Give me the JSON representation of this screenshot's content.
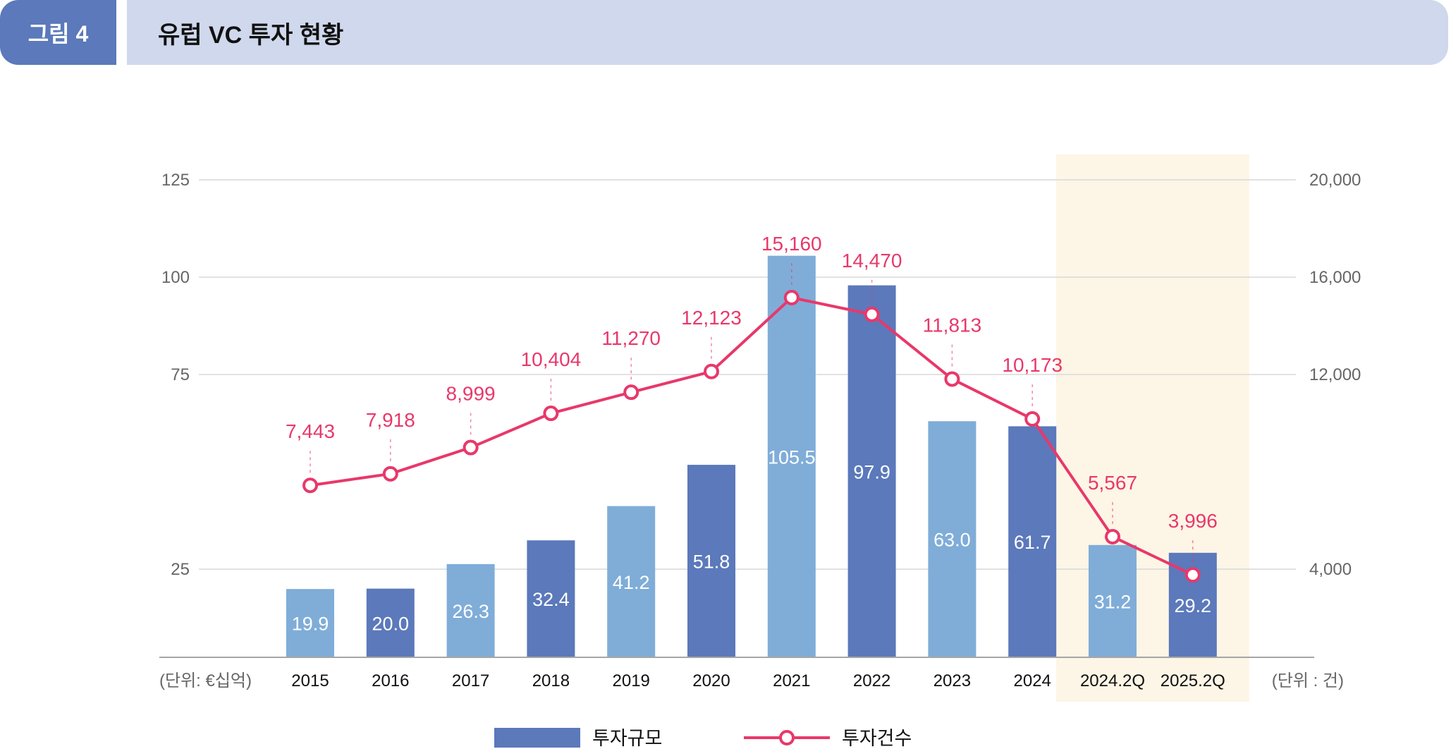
{
  "header": {
    "figure_label": "그림 4",
    "title": "유럽 VC 투자 현황"
  },
  "colors": {
    "bar_light": "#7fadd8",
    "bar_dark": "#5b79bb",
    "line": "#e8386a",
    "highlight": "#fdf5e6",
    "grid": "#d9d9d9"
  },
  "chart_data": {
    "type": "bar+line",
    "title": "유럽 VC 투자 현황",
    "categories": [
      "2015",
      "2016",
      "2017",
      "2018",
      "2019",
      "2020",
      "2021",
      "2022",
      "2023",
      "2024",
      "2024.2Q",
      "2025.2Q"
    ],
    "series": [
      {
        "name": "투자규모",
        "type": "bar",
        "axis": "left",
        "values": [
          19.9,
          20.0,
          26.3,
          32.4,
          41.2,
          51.8,
          105.5,
          97.9,
          63.0,
          61.7,
          31.2,
          29.2
        ],
        "labels": [
          "19.9",
          "20.0",
          "26.3",
          "32.4",
          "41.2",
          "51.8",
          "105.5",
          "97.9",
          "63.0",
          "61.7",
          "31.2",
          "29.2"
        ]
      },
      {
        "name": "투자건수",
        "type": "line",
        "axis": "right",
        "values": [
          7443,
          7918,
          8999,
          10404,
          11270,
          12123,
          15160,
          14470,
          11813,
          10173,
          5567,
          3996
        ],
        "labels": [
          "7,443",
          "7,918",
          "8,999",
          "10,404",
          "11,270",
          "12,123",
          "15,160",
          "14,470",
          "11,813",
          "10,173",
          "5,567",
          "3,996"
        ]
      }
    ],
    "left_axis": {
      "ticks": [
        25,
        75,
        100,
        125
      ],
      "tick_labels": [
        "25",
        "75",
        "100",
        "125"
      ],
      "unit_label": "(단위: €십억)",
      "range": [
        0,
        125
      ]
    },
    "right_axis": {
      "ticks": [
        4000,
        12000,
        16000,
        20000
      ],
      "tick_labels": [
        "4,000",
        "12,000",
        "16,000",
        "20,000"
      ],
      "unit_label": "(단위 : 건)",
      "range": [
        0,
        20000
      ]
    },
    "highlighted_categories": [
      "2024.2Q",
      "2025.2Q"
    ],
    "grid": true,
    "legend": {
      "placement": "bottom",
      "items": [
        "투자규모",
        "투자건수"
      ]
    }
  }
}
